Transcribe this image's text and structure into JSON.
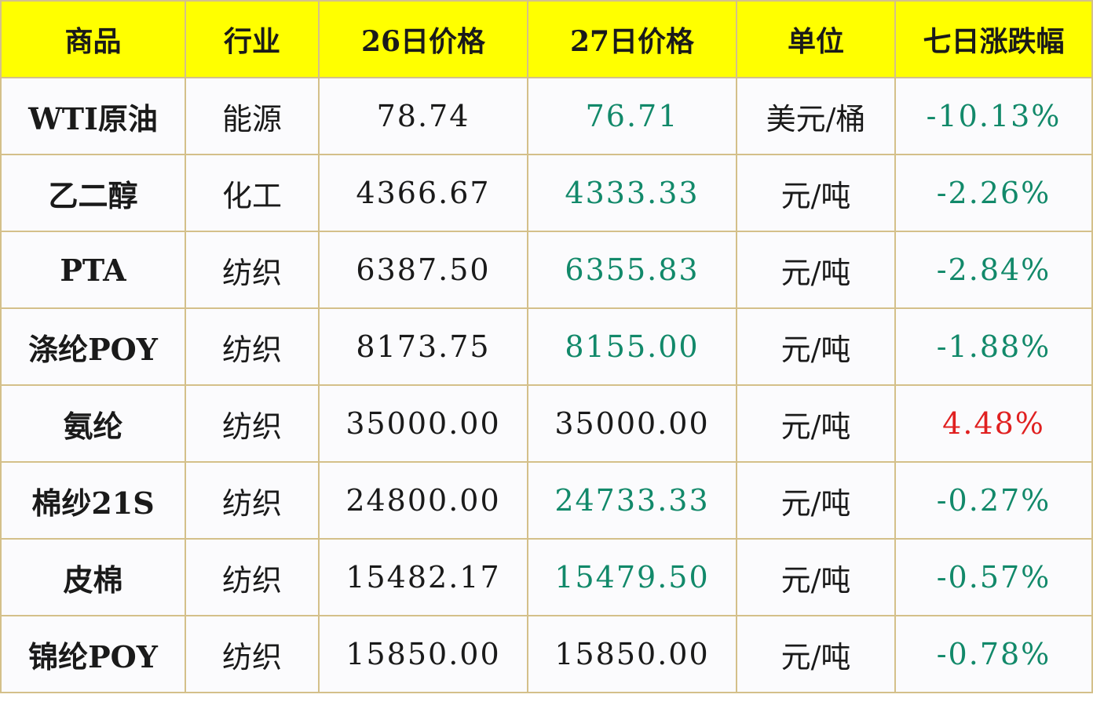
{
  "colors": {
    "header_bg": "#ffff00",
    "border": "#d4c08a",
    "down": "#12896a",
    "up": "#e02020"
  },
  "headers": [
    "商品",
    "行业",
    "26日价格",
    "27日价格",
    "单位",
    "七日涨跌幅"
  ],
  "rows": [
    {
      "name": "WTI原油",
      "industry": "能源",
      "p26": "78.74",
      "p27": "76.71",
      "p27_tone": "down",
      "unit": "美元/桶",
      "change": "-10.13%",
      "change_tone": "down"
    },
    {
      "name": "乙二醇",
      "industry": "化工",
      "p26": "4366.67",
      "p27": "4333.33",
      "p27_tone": "down",
      "unit": "元/吨",
      "change": "-2.26%",
      "change_tone": "down"
    },
    {
      "name": "PTA",
      "industry": "纺织",
      "p26": "6387.50",
      "p27": "6355.83",
      "p27_tone": "down",
      "unit": "元/吨",
      "change": "-2.84%",
      "change_tone": "down"
    },
    {
      "name": "涤纶POY",
      "industry": "纺织",
      "p26": "8173.75",
      "p27": "8155.00",
      "p27_tone": "down",
      "unit": "元/吨",
      "change": "-1.88%",
      "change_tone": "down"
    },
    {
      "name": "氨纶",
      "industry": "纺织",
      "p26": "35000.00",
      "p27": "35000.00",
      "p27_tone": "flat",
      "unit": "元/吨",
      "change": "4.48%",
      "change_tone": "up"
    },
    {
      "name": "棉纱21S",
      "industry": "纺织",
      "p26": "24800.00",
      "p27": "24733.33",
      "p27_tone": "down",
      "unit": "元/吨",
      "change": "-0.27%",
      "change_tone": "down"
    },
    {
      "name": "皮棉",
      "industry": "纺织",
      "p26": "15482.17",
      "p27": "15479.50",
      "p27_tone": "down",
      "unit": "元/吨",
      "change": "-0.57%",
      "change_tone": "down"
    },
    {
      "name": "锦纶POY",
      "industry": "纺织",
      "p26": "15850.00",
      "p27": "15850.00",
      "p27_tone": "flat",
      "unit": "元/吨",
      "change": "-0.78%",
      "change_tone": "down"
    }
  ]
}
